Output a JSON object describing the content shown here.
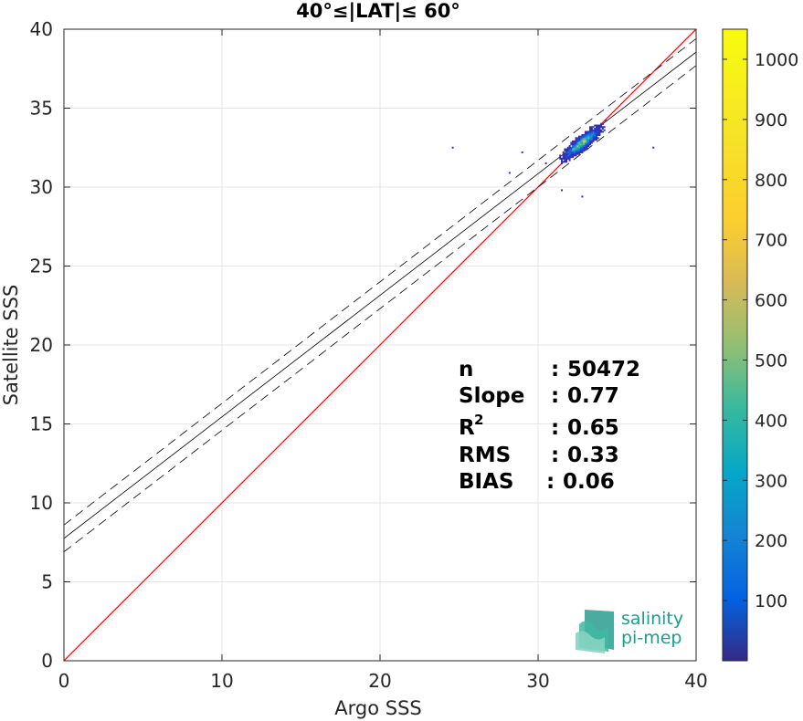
{
  "chart_data": {
    "type": "scatter",
    "title": "40°≤|LAT|≤ 60°",
    "xlabel": "Argo SSS",
    "ylabel": "Satellite SSS",
    "xlim": [
      0,
      40
    ],
    "ylim": [
      0,
      40
    ],
    "xticks": [
      "0",
      "10",
      "20",
      "30",
      "40"
    ],
    "yticks": [
      "0",
      "5",
      "10",
      "15",
      "20",
      "25",
      "30",
      "35",
      "40"
    ],
    "grid": true,
    "density_center": {
      "x": 32.8,
      "y": 32.8
    },
    "regression": {
      "slope": 0.77,
      "intercept": 7.75,
      "band": 0.85
    },
    "identity_line": {
      "color": "#ff0000"
    },
    "colorbar": {
      "range": [
        0,
        1050
      ],
      "ticks": [
        "100",
        "200",
        "300",
        "400",
        "500",
        "600",
        "700",
        "800",
        "900",
        "1000"
      ],
      "colormap": "parula"
    },
    "stats": [
      {
        "label": "n",
        "sep": ":",
        "value": "50472"
      },
      {
        "label": "Slope",
        "sep": ":",
        "value": "0.77"
      },
      {
        "label": "R",
        "sup": "2",
        "sep": ":",
        "value": "0.65"
      },
      {
        "label": "RMS",
        "sep": ":",
        "value": "0.33"
      },
      {
        "label": "BIAS",
        "sep": ":",
        "value": "0.06"
      }
    ]
  },
  "logo": {
    "line1": "salinity",
    "line2": "pi-mep"
  }
}
